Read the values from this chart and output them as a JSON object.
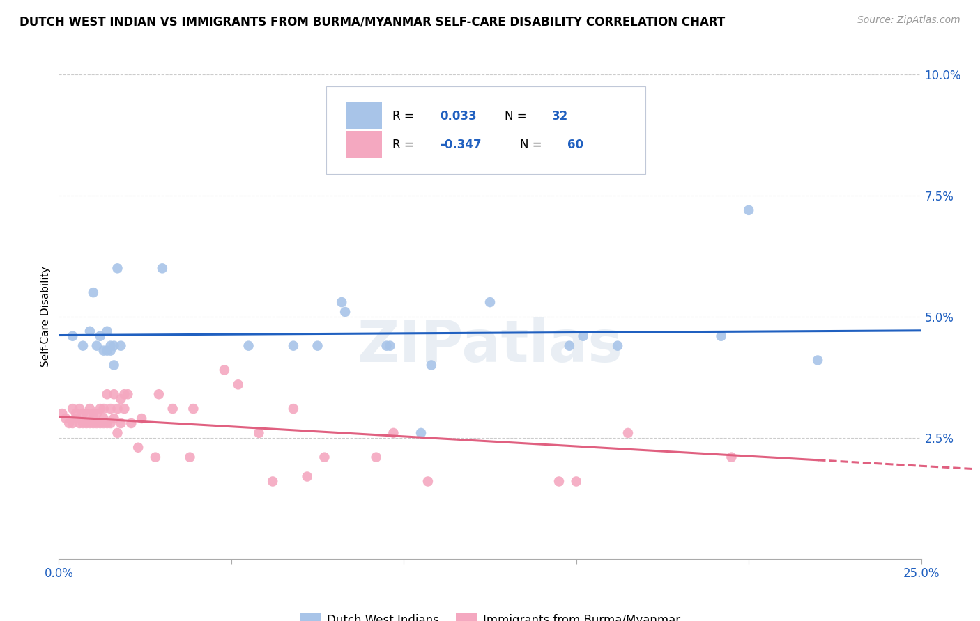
{
  "title": "DUTCH WEST INDIAN VS IMMIGRANTS FROM BURMA/MYANMAR SELF-CARE DISABILITY CORRELATION CHART",
  "source": "Source: ZipAtlas.com",
  "ylabel": "Self-Care Disability",
  "xlim": [
    0.0,
    0.25
  ],
  "ylim": [
    0.0,
    0.1
  ],
  "blue_R": 0.033,
  "blue_N": 32,
  "pink_R": -0.347,
  "pink_N": 60,
  "blue_color": "#a8c4e8",
  "pink_color": "#f4a8c0",
  "blue_line_color": "#2060c0",
  "pink_line_color": "#e06080",
  "watermark": "ZIPatlas",
  "blue_scatter_x": [
    0.004,
    0.007,
    0.009,
    0.01,
    0.011,
    0.012,
    0.013,
    0.014,
    0.014,
    0.015,
    0.015,
    0.016,
    0.016,
    0.017,
    0.018,
    0.03,
    0.055,
    0.068,
    0.075,
    0.082,
    0.083,
    0.095,
    0.096,
    0.105,
    0.108,
    0.125,
    0.148,
    0.152,
    0.162,
    0.192,
    0.2,
    0.22
  ],
  "blue_scatter_y": [
    0.046,
    0.044,
    0.047,
    0.055,
    0.044,
    0.046,
    0.043,
    0.043,
    0.047,
    0.044,
    0.043,
    0.04,
    0.044,
    0.06,
    0.044,
    0.06,
    0.044,
    0.044,
    0.044,
    0.053,
    0.051,
    0.044,
    0.044,
    0.026,
    0.04,
    0.053,
    0.044,
    0.046,
    0.044,
    0.046,
    0.072,
    0.041
  ],
  "pink_scatter_x": [
    0.001,
    0.002,
    0.003,
    0.004,
    0.004,
    0.005,
    0.005,
    0.006,
    0.006,
    0.007,
    0.007,
    0.008,
    0.008,
    0.009,
    0.009,
    0.01,
    0.01,
    0.01,
    0.011,
    0.011,
    0.012,
    0.012,
    0.013,
    0.013,
    0.013,
    0.014,
    0.014,
    0.015,
    0.015,
    0.016,
    0.016,
    0.017,
    0.017,
    0.018,
    0.018,
    0.019,
    0.019,
    0.02,
    0.021,
    0.023,
    0.024,
    0.028,
    0.029,
    0.033,
    0.038,
    0.039,
    0.048,
    0.052,
    0.058,
    0.062,
    0.068,
    0.072,
    0.077,
    0.092,
    0.097,
    0.107,
    0.145,
    0.15,
    0.165,
    0.195
  ],
  "pink_scatter_y": [
    0.03,
    0.029,
    0.028,
    0.031,
    0.028,
    0.029,
    0.03,
    0.028,
    0.031,
    0.028,
    0.03,
    0.028,
    0.03,
    0.028,
    0.031,
    0.028,
    0.029,
    0.03,
    0.028,
    0.03,
    0.028,
    0.031,
    0.028,
    0.029,
    0.031,
    0.034,
    0.028,
    0.028,
    0.031,
    0.029,
    0.034,
    0.026,
    0.031,
    0.028,
    0.033,
    0.034,
    0.031,
    0.034,
    0.028,
    0.023,
    0.029,
    0.021,
    0.034,
    0.031,
    0.021,
    0.031,
    0.039,
    0.036,
    0.026,
    0.016,
    0.031,
    0.017,
    0.021,
    0.021,
    0.026,
    0.016,
    0.016,
    0.016,
    0.026,
    0.021
  ]
}
